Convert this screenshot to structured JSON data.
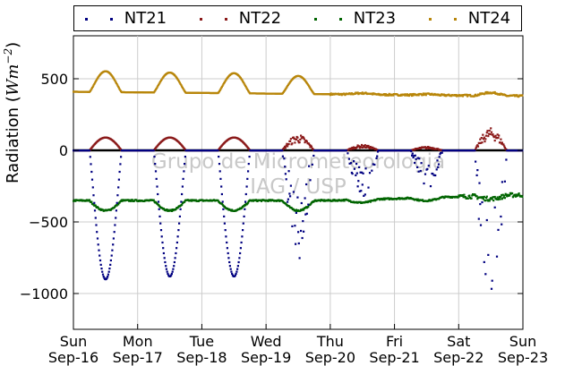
{
  "chart_data": {
    "type": "scatter",
    "ylabel_text": "Radiation (",
    "ylabel_math": "Wm",
    "ylabel_exp": "−2",
    "ylabel_close": ")",
    "ylim": [
      -1250,
      800
    ],
    "yticks": [
      500,
      0,
      -500,
      -1000
    ],
    "ytick_labels": [
      "500",
      "0",
      "−500",
      "−1000"
    ],
    "xlim": [
      0,
      7
    ],
    "xticks": [
      0,
      1,
      2,
      3,
      4,
      5,
      6,
      7
    ],
    "xtick_days": [
      "Sun",
      "Mon",
      "Tue",
      "Wed",
      "Thu",
      "Fri",
      "Sat",
      "Sun"
    ],
    "xtick_dates": [
      "Sep-16",
      "Sep-17",
      "Sep-18",
      "Sep-19",
      "Sep-20",
      "Sep-21",
      "Sep-22",
      "Sep-23"
    ],
    "watermark": [
      "Grupo de Micrometeorologia",
      "IAG / USP"
    ],
    "grid": true,
    "legend_position": "top",
    "series": [
      {
        "name": "NT21",
        "color": "#000080",
        "daily_min": [
          -900,
          -880,
          -880,
          -700,
          -300,
          -250,
          -1150
        ],
        "night_value": 0
      },
      {
        "name": "NT22",
        "color": "#8b1a1a",
        "daily_max": [
          90,
          90,
          90,
          85,
          30,
          20,
          120
        ],
        "night_value": 0
      },
      {
        "name": "NT23",
        "color": "#006400",
        "night_value": -350,
        "day_value": -420,
        "end_value": -310
      },
      {
        "name": "NT24",
        "color": "#b8860b",
        "daily_max": [
          555,
          550,
          550,
          535,
          440,
          430,
          480
        ],
        "night_value": 410,
        "end_value": 380
      }
    ]
  }
}
